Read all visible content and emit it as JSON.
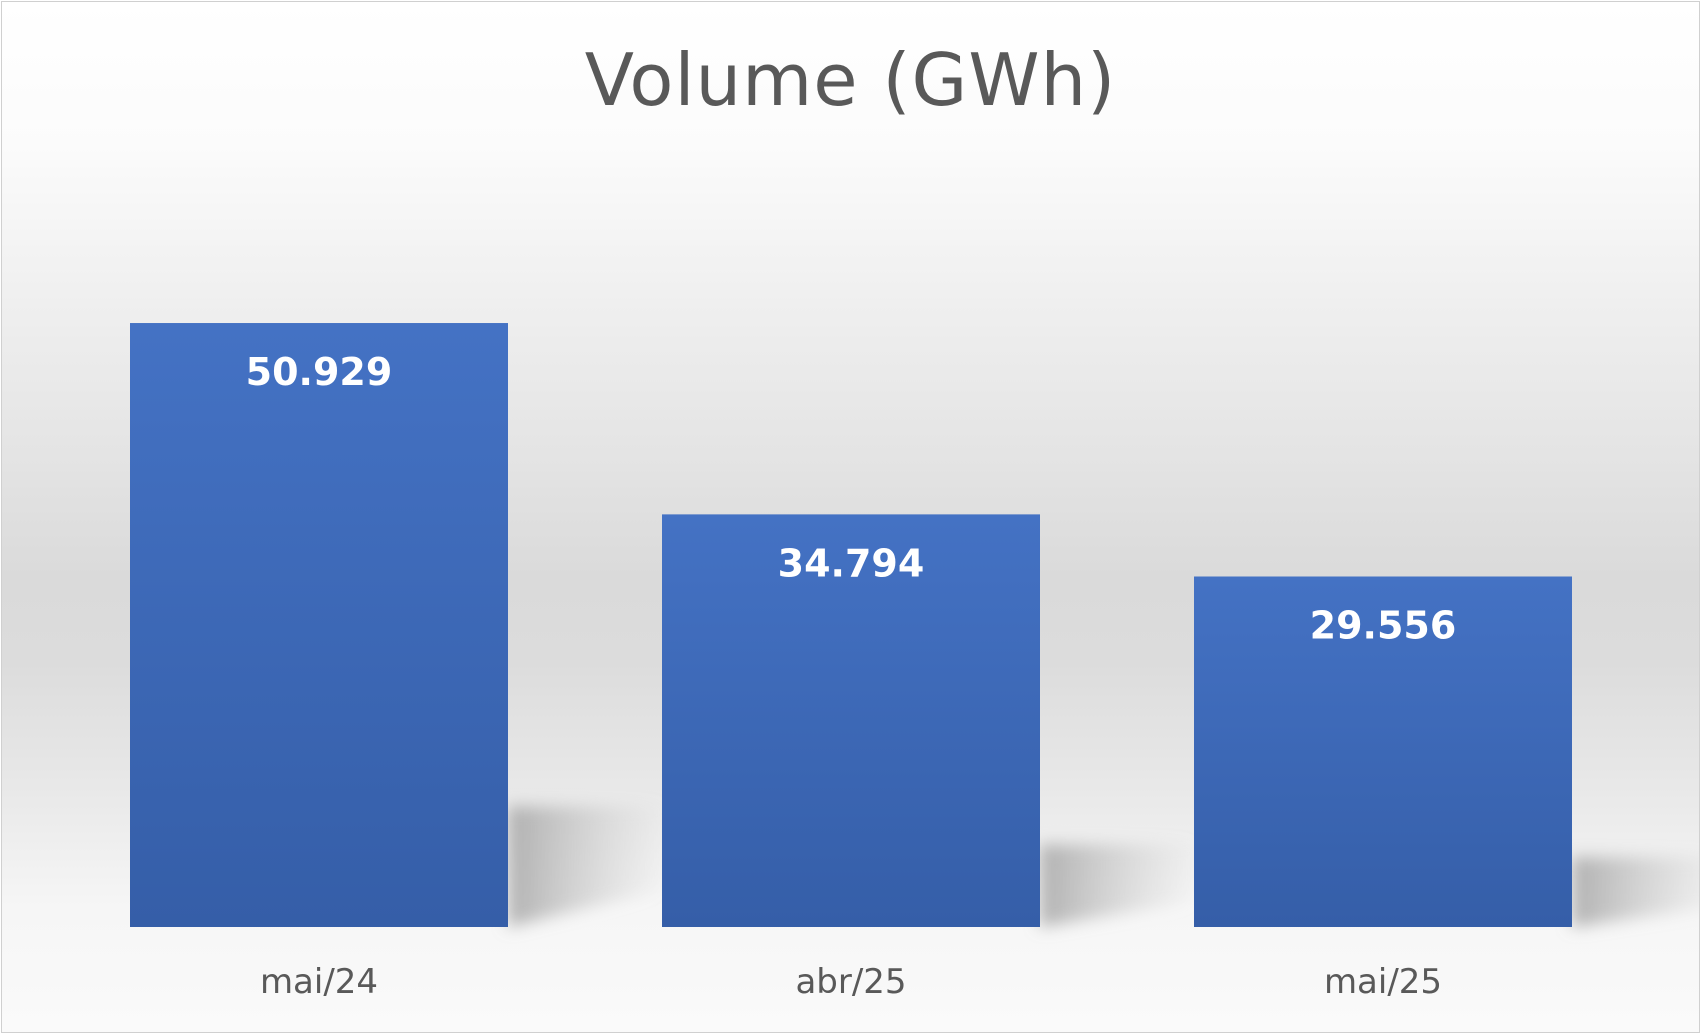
{
  "chart_data": {
    "type": "bar",
    "title": "Volume (GWh)",
    "categories": [
      "mai/24",
      "abr/25",
      "mai/25"
    ],
    "values": [
      50929,
      34794,
      29556
    ],
    "data_labels": [
      "50.929",
      "34.794",
      "29.556"
    ],
    "xlabel": "",
    "ylabel": "",
    "ylim": [
      0,
      78000
    ],
    "grid": false,
    "legend": "none",
    "bar_color": "#4472C4",
    "bar_color_dark": "#355EA8",
    "label_color": "#FFFFFF",
    "text_color": "#595959"
  }
}
